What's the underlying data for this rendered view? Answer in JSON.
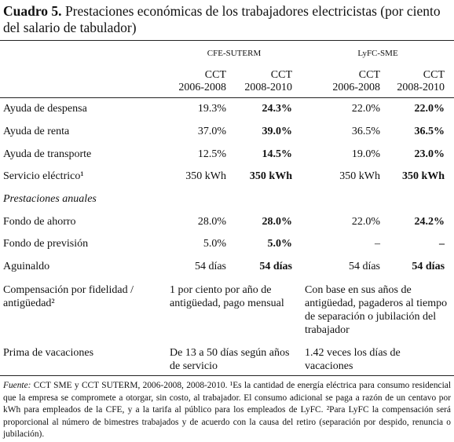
{
  "title": {
    "label": "Cuadro 5.",
    "text": "Prestaciones económicas de los trabajadores electricistas (por ciento del salario de tabulador)"
  },
  "table": {
    "groups": [
      "CFE-SUTERM",
      "LyFC-SME"
    ],
    "columns": [
      [
        "CCT",
        "2006-2008"
      ],
      [
        "CCT",
        "2008-2010"
      ],
      [
        "CCT",
        "2006-2008"
      ],
      [
        "CCT",
        "2008-2010"
      ]
    ],
    "rows": [
      [
        "Ayuda de despensa",
        "19.3%",
        "24.3%",
        "22.0%",
        "22.0%"
      ],
      [
        "Ayuda de renta",
        "37.0%",
        "39.0%",
        "36.5%",
        "36.5%"
      ],
      [
        "Ayuda de transporte",
        "12.5%",
        "14.5%",
        "19.0%",
        "23.0%"
      ],
      [
        "Servicio eléctrico¹",
        "350 kWh",
        "350 kWh",
        "350 kWh",
        "350 kWh"
      ]
    ],
    "section": "Prestaciones anuales",
    "annual_rows": [
      [
        "Fondo de ahorro",
        "28.0%",
        "28.0%",
        "22.0%",
        "24.2%"
      ],
      [
        "Fondo de previsión",
        "5.0%",
        "5.0%",
        "–",
        "–"
      ],
      [
        "Aguinaldo",
        "54 días",
        "54 días",
        "54 días",
        "54 días"
      ]
    ],
    "text_rows": [
      [
        "Compensación por fidelidad / antigüedad²",
        "1 por ciento por año de antigüedad, pago mensual",
        "Con base en sus años de antigüedad, pagaderos al tiempo de separación o jubilación del trabajador"
      ],
      [
        "Prima de vacaciones",
        "De 13 a 50 días según años de servicio",
        "1.42 veces los días de vacaciones"
      ]
    ]
  },
  "footnote": {
    "label": "Fuente:",
    "text": "CCT SME y CCT SUTERM, 2006-2008, 2008-2010. ¹Es la cantidad de energía eléctrica para consumo residencial que la empresa se compromete a otorgar, sin costo, al trabajador. El consumo adicional se paga a razón de un centavo por kWh para empleados de la CFE, y a la tarifa al público para los empleados de LyFC. ²Para LyFC la compensación será proporcional al número de bimestres trabajados y de acuerdo con la causa del retiro (separación por despido, renuncia o jubilación)."
  }
}
